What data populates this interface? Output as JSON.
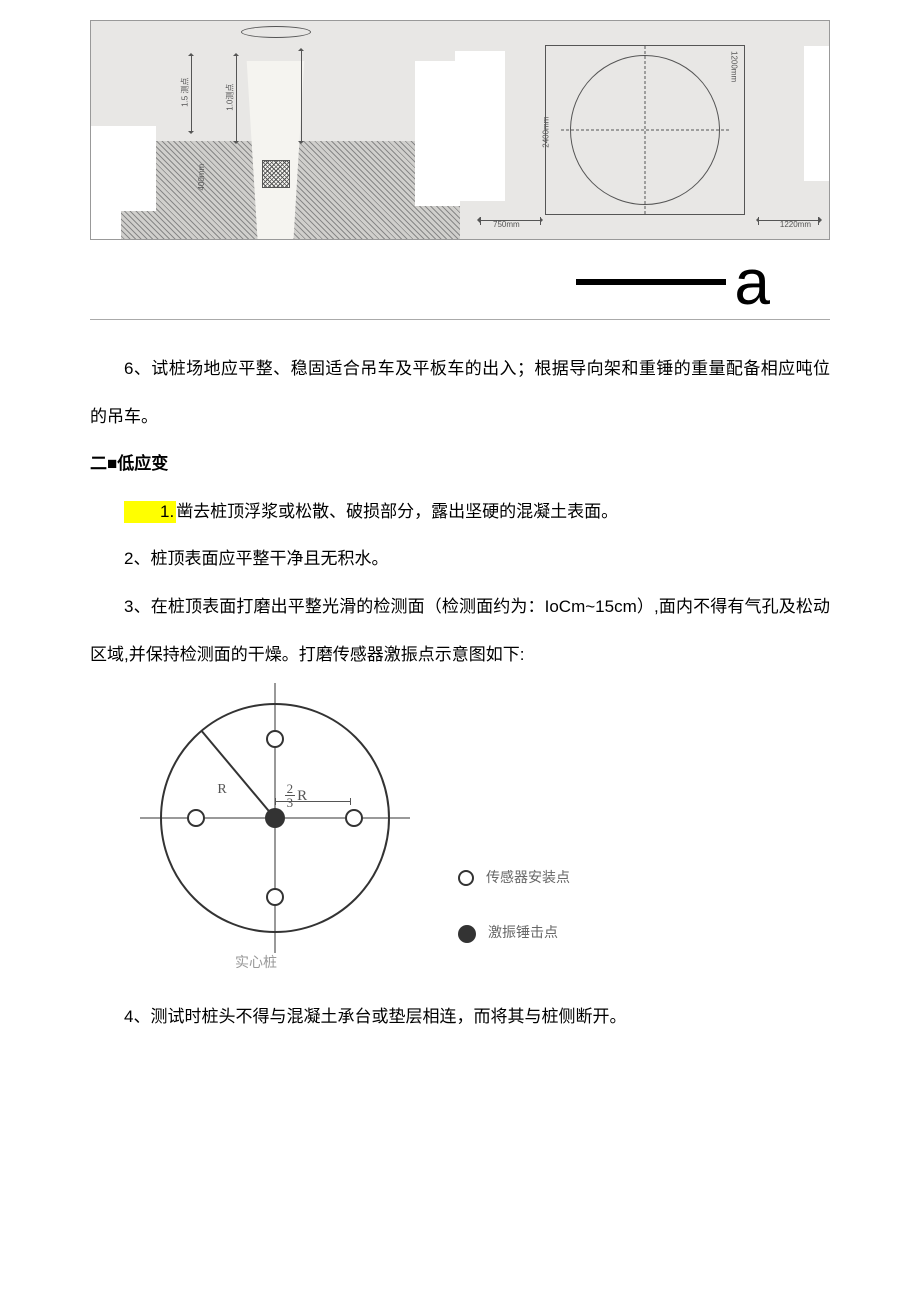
{
  "topFigure": {
    "letter": "a",
    "dims": {
      "plan_width": "750mm",
      "plan_height_left": "2400mm",
      "plan_height_right": "1200mm",
      "plan_right_width": "1220mm",
      "section_top": "1.5 测点",
      "section_depth": "1.0测点",
      "pile_block": "400mm"
    }
  },
  "p6": "6、试桩场地应平整、稳固适合吊车及平板车的出入；根据导向架和重锤的重量配备相应吨位的吊车。",
  "sectionTitle": "二■低应变",
  "item1_prefix": "1.",
  "item1": "凿去桩顶浮浆或松散、破损部分，露出坚硬的混凝土表面。",
  "item2": "2、桩顶表面应平整干净且无积水。",
  "item3": "3、在桩顶表面打磨出平整光滑的检测面（检测面约为：IoCm~15cm）,面内不得有气孔及松动区域,并保持检测面的干燥。打磨传感器激振点示意图如下:",
  "sensorDiagram": {
    "radiusLabel": "R",
    "innerRadiusFraction": {
      "num": "2",
      "den": "3",
      "suffix": "R"
    },
    "caption": "实心桩",
    "legend": {
      "sensor": "传感器安装点",
      "hammer": "激振锤击点"
    },
    "points": [
      {
        "type": "hammer",
        "x": 50,
        "y": 50
      },
      {
        "type": "sensor",
        "x": 50,
        "y": 17
      },
      {
        "type": "sensor",
        "x": 50,
        "y": 83
      },
      {
        "type": "sensor",
        "x": 17,
        "y": 50
      },
      {
        "type": "sensor",
        "x": 83,
        "y": 50
      }
    ]
  },
  "item4": "4、测试时桩头不得与混凝土承台或垫层相连，而将其与桩侧断开。"
}
